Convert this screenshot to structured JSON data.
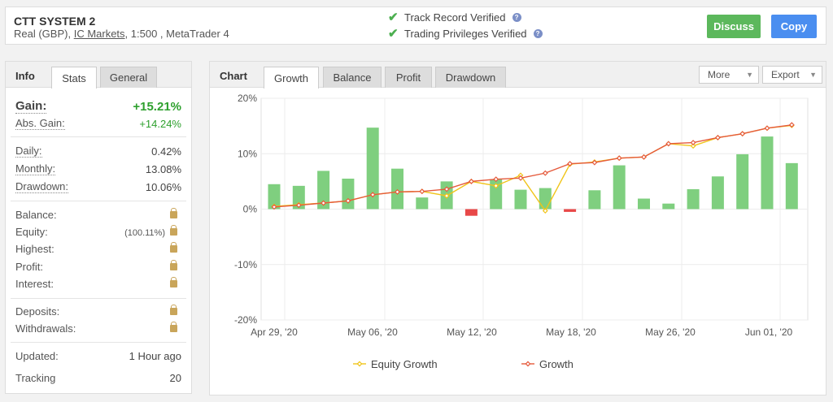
{
  "header": {
    "system_name": "CTT SYSTEM 2",
    "account_type": "Real (GBP),",
    "broker": "IC Markets",
    "leverage_platform": ", 1:500 , MetaTrader 4",
    "verify_track": "Track Record Verified",
    "verify_trading": "Trading Privileges Verified",
    "discuss_label": "Discuss",
    "copy_label": "Copy"
  },
  "info": {
    "title": "Info",
    "tabs": [
      "Stats",
      "General"
    ],
    "gain_label": "Gain:",
    "gain_value": "+15.21%",
    "abs_gain_label": "Abs. Gain:",
    "abs_gain_value": "+14.24%",
    "daily_label": "Daily:",
    "daily_value": "0.42%",
    "monthly_label": "Monthly:",
    "monthly_value": "13.08%",
    "drawdown_label": "Drawdown:",
    "drawdown_value": "10.06%",
    "balance_label": "Balance:",
    "equity_label": "Equity:",
    "equity_pct": "(100.11%)",
    "highest_label": "Highest:",
    "profit_label": "Profit:",
    "interest_label": "Interest:",
    "deposits_label": "Deposits:",
    "withdrawals_label": "Withdrawals:",
    "updated_label": "Updated:",
    "updated_value": "1 Hour ago",
    "tracking_label": "Tracking",
    "tracking_value": "20"
  },
  "chart_panel": {
    "title": "Chart",
    "tabs": [
      "Growth",
      "Balance",
      "Profit",
      "Drawdown"
    ],
    "more_label": "More",
    "export_label": "Export"
  },
  "chart_data": {
    "type": "bar+line",
    "y_ticks": [
      "20%",
      "10%",
      "0%",
      "-10%",
      "-20%"
    ],
    "ylim": [
      -20,
      20
    ],
    "x_ticks": [
      "Apr 29, '20",
      "May 06, '20",
      "May 12, '20",
      "May 18, '20",
      "May 26, '20",
      "Jun 01, '20"
    ],
    "bars": [
      4.5,
      4.2,
      6.9,
      5.5,
      14.7,
      7.3,
      2.1,
      5.0,
      -1.2,
      5.4,
      3.5,
      3.8,
      -0.5,
      3.4,
      7.9,
      1.9,
      1.0,
      3.6,
      5.9,
      9.9,
      13.1,
      8.3
    ],
    "growth": [
      0.4,
      0.7,
      1.1,
      1.5,
      2.6,
      3.1,
      3.2,
      3.6,
      5.0,
      5.4,
      5.6,
      6.5,
      8.2,
      8.4,
      9.2,
      9.4,
      11.8,
      12.0,
      12.9,
      13.6,
      14.6,
      15.2
    ],
    "equity": [
      0.5,
      0.8,
      1.1,
      1.5,
      2.6,
      3.1,
      3.2,
      2.4,
      5.0,
      4.2,
      6.1,
      -0.3,
      8.1,
      8.5,
      9.2,
      9.4,
      11.8,
      11.4,
      12.9,
      13.6,
      14.6,
      15.1
    ],
    "series": [
      {
        "name": "Equity Growth",
        "color": "#f0c419"
      },
      {
        "name": "Growth",
        "color": "#e55a3c"
      }
    ],
    "bar_pos_color": "#7fcf7f",
    "bar_neg_color": "#e84848"
  }
}
